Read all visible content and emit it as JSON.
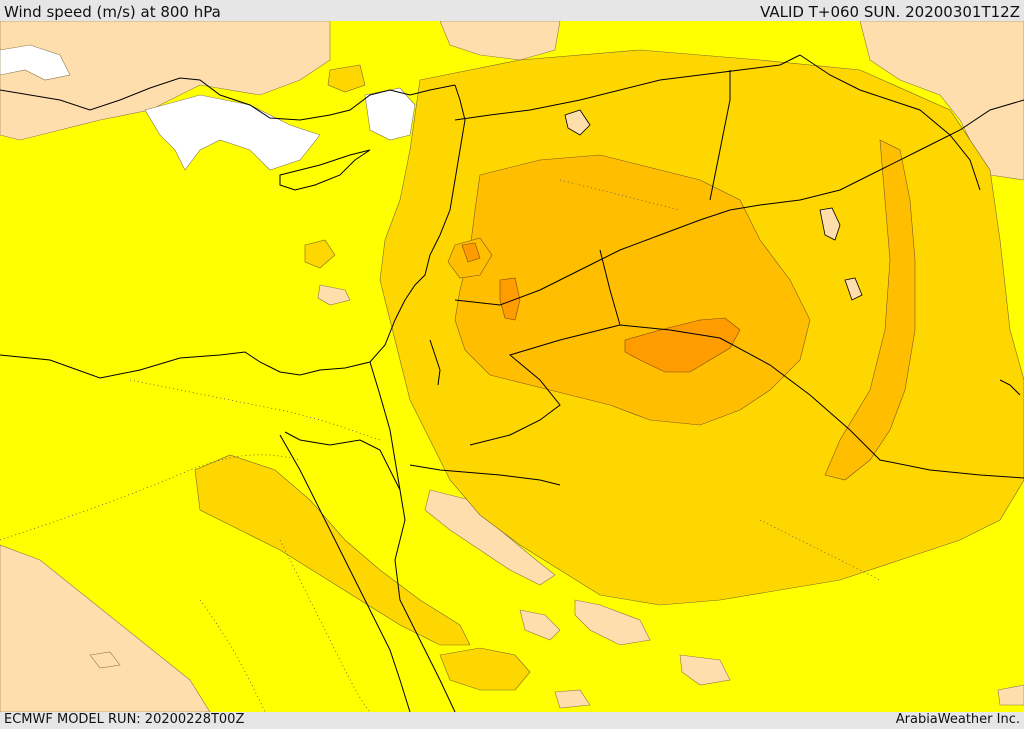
{
  "header": {
    "title": "Wind speed (m/s) at 800 hPa",
    "valid": "VALID T+060 SUN. 20200301T12Z"
  },
  "footer": {
    "run": "ECMWF MODEL RUN: 20200228T00Z",
    "brand": "ArabiaWeather Inc."
  },
  "colors": {
    "wind_0_5": "#ffff00",
    "wind_5_10": "#ffd700",
    "wind_10_15": "#ffbf00",
    "wind_15_20": "#ff9c00",
    "low_wind": "#ffdead",
    "calm": "#ffffff"
  }
}
